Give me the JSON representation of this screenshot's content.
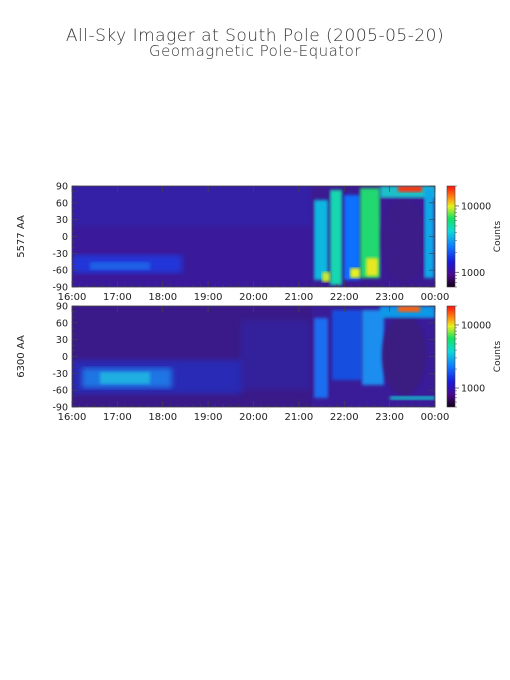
{
  "title": "All-Sky Imager at South Pole (2005-05-20)",
  "subtitle": "Geomagnetic Pole-Equator",
  "chart_data": [
    {
      "type": "heatmap",
      "ylabel": "5577 AA",
      "x_ticks": [
        "16:00",
        "17:00",
        "18:00",
        "19:00",
        "20:00",
        "21:00",
        "22:00",
        "23:00",
        "00:00"
      ],
      "y_ticks": [
        90,
        60,
        30,
        0,
        -30,
        -60,
        -90
      ],
      "ylim": [
        -90,
        90
      ],
      "colorbar": {
        "label": "Counts",
        "scale": "log",
        "range": [
          600,
          20000
        ],
        "ticks": [
          1000,
          10000
        ],
        "tick_labels": [
          "1000",
          "10000"
        ]
      },
      "grid": false
    },
    {
      "type": "heatmap",
      "ylabel": "6300 AA",
      "x_ticks": [
        "16:00",
        "17:00",
        "18:00",
        "19:00",
        "20:00",
        "21:00",
        "22:00",
        "23:00",
        "00:00"
      ],
      "y_ticks": [
        90,
        60,
        30,
        0,
        -30,
        -60,
        -90
      ],
      "ylim": [
        -90,
        90
      ],
      "colorbar": {
        "label": "Counts",
        "scale": "log",
        "range": [
          500,
          20000
        ],
        "ticks": [
          1000,
          10000
        ],
        "tick_labels": [
          "1000",
          "10000"
        ]
      },
      "grid": false
    }
  ]
}
